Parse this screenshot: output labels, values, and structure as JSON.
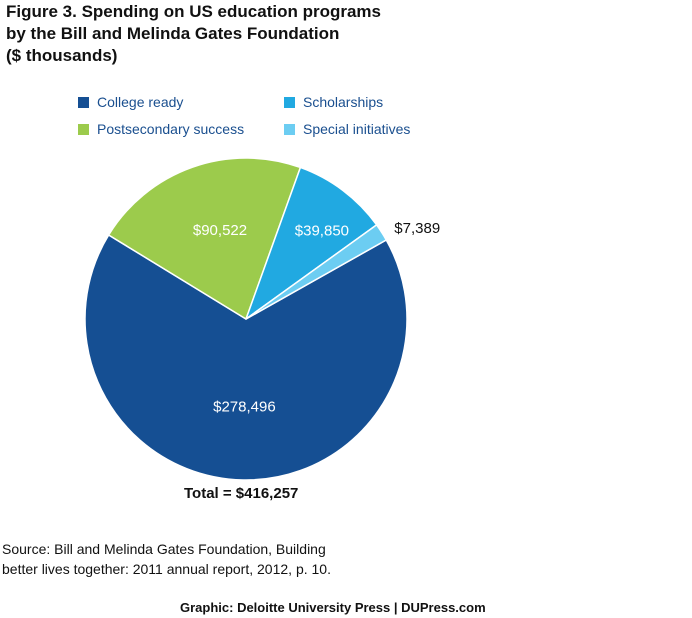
{
  "title": {
    "line1": "Figure 3. Spending on US education programs",
    "line2": "by the Bill and Melinda Gates Foundation",
    "line3": "($ thousands)"
  },
  "chart_data": {
    "type": "pie",
    "slices": [
      {
        "name": "College ready",
        "value": 278496,
        "label": "$278,496",
        "color": "#154f93",
        "label_position": "inside"
      },
      {
        "name": "Postsecondary success",
        "value": 90522,
        "label": "$90,522",
        "color": "#9ccb4c",
        "label_position": "inside"
      },
      {
        "name": "Scholarships",
        "value": 39850,
        "label": "$39,850",
        "color": "#21a9e1",
        "label_position": "inside"
      },
      {
        "name": "Special initiatives",
        "value": 7389,
        "label": "$7,389",
        "color": "#6ccdf2",
        "label_position": "outside"
      }
    ],
    "legend": [
      {
        "label": "College ready",
        "color": "#154f93"
      },
      {
        "label": "Scholarships",
        "color": "#21a9e1"
      },
      {
        "label": "Postsecondary success",
        "color": "#9ccb4c"
      },
      {
        "label": "Special initiatives",
        "color": "#6ccdf2"
      }
    ],
    "legend_placement": "top",
    "total_label": "Total = $416,257",
    "total_value": 416257
  },
  "footer": {
    "source_line1": "Source: Bill and Melinda Gates Foundation, Building",
    "source_line2": "better lives together: 2011 annual report, 2012, p. 10.",
    "credit": "Graphic: Deloitte University Press  |  DUPress.com"
  }
}
